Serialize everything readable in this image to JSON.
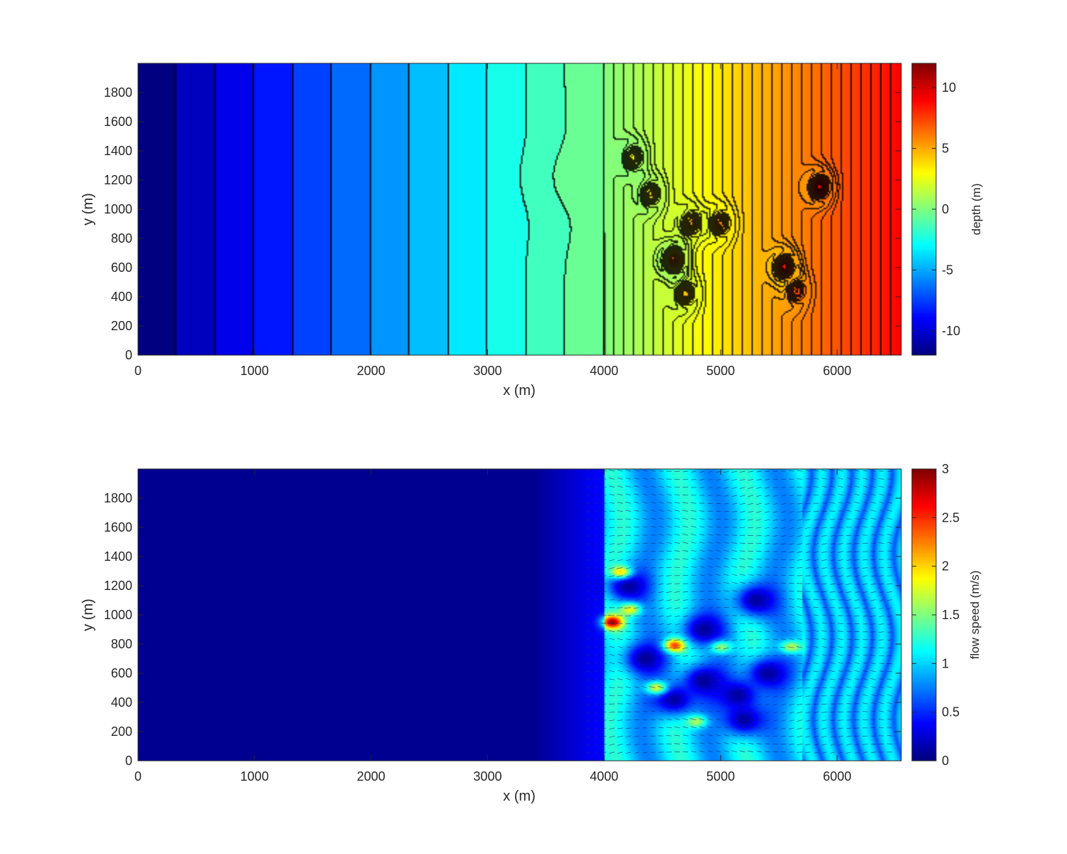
{
  "chart_data": [
    {
      "type": "heatmap",
      "description_visible": "filled contour map of bed depth",
      "xlabel": "x (m)",
      "ylabel": "y (m)",
      "xlim": [
        0,
        6550
      ],
      "ylim": [
        0,
        2000
      ],
      "xticks": [
        0,
        1000,
        2000,
        3000,
        4000,
        5000,
        6000
      ],
      "yticks": [
        0,
        200,
        400,
        600,
        800,
        1000,
        1200,
        1400,
        1600,
        1800
      ],
      "colorbar": {
        "label": "depth (m)",
        "range": [
          -12,
          12
        ],
        "ticks": [
          -10,
          -5,
          0,
          5,
          10
        ],
        "colormap": "jet"
      },
      "offshore_depth_bands": {
        "x_edges": [
          0,
          333,
          667,
          1000,
          1333,
          1667,
          2000,
          2333,
          2667,
          3000,
          3333,
          3667,
          4000
        ],
        "depths": [
          -12,
          -10.5,
          -9.5,
          -8.5,
          -7.5,
          -6.5,
          -5.5,
          -4.5,
          -3.5,
          -2.5,
          -1.5,
          -0.5
        ]
      },
      "shoreline_zero_contour_x": 4000,
      "onshore_depth_range": [
        0,
        9
      ],
      "features": [
        {
          "x": 4250,
          "y": 1350,
          "amplitude": 2
        },
        {
          "x": 4400,
          "y": 1100,
          "amplitude": 2
        },
        {
          "x": 4600,
          "y": 650,
          "amplitude": 4
        },
        {
          "x": 4700,
          "y": 420,
          "amplitude": 2
        },
        {
          "x": 4750,
          "y": 900,
          "amplitude": 2
        },
        {
          "x": 5000,
          "y": 900,
          "amplitude": 2
        },
        {
          "x": 5550,
          "y": 600,
          "amplitude": 3
        },
        {
          "x": 5850,
          "y": 1150,
          "amplitude": 3
        },
        {
          "x": 5650,
          "y": 440,
          "amplitude": 1.5
        }
      ]
    },
    {
      "type": "heatmap",
      "description_visible": "flow speed magnitude with velocity vectors",
      "xlabel": "x (m)",
      "ylabel": "y (m)",
      "xlim": [
        0,
        6550
      ],
      "ylim": [
        0,
        2000
      ],
      "xticks": [
        0,
        1000,
        2000,
        3000,
        4000,
        5000,
        6000
      ],
      "yticks": [
        0,
        200,
        400,
        600,
        800,
        1000,
        1200,
        1400,
        1600,
        1800
      ],
      "colorbar": {
        "label": "flow speed (m/s)",
        "range": [
          0,
          3
        ],
        "ticks": [
          0,
          0.5,
          1,
          1.5,
          2,
          2.5,
          3
        ],
        "colormap": "jet"
      },
      "offshore_speed": 0.05,
      "surf_zone_speed": 1.0,
      "surf_zone_start_x": 4000,
      "high_speed_spots": [
        {
          "x": 4070,
          "y": 950,
          "speed": 2.7
        },
        {
          "x": 4230,
          "y": 1040,
          "speed": 2.0
        },
        {
          "x": 4150,
          "y": 1290,
          "speed": 2.3
        },
        {
          "x": 4600,
          "y": 790,
          "speed": 2.5
        },
        {
          "x": 4450,
          "y": 500,
          "speed": 2.2
        },
        {
          "x": 4800,
          "y": 270,
          "speed": 1.8
        },
        {
          "x": 5600,
          "y": 780,
          "speed": 1.9
        },
        {
          "x": 5000,
          "y": 780,
          "speed": 1.9
        }
      ],
      "low_speed_pockets": [
        {
          "x": 4200,
          "y": 1200
        },
        {
          "x": 4350,
          "y": 700
        },
        {
          "x": 4850,
          "y": 900
        },
        {
          "x": 5300,
          "y": 1100
        },
        {
          "x": 4850,
          "y": 550
        },
        {
          "x": 5400,
          "y": 600
        },
        {
          "x": 4600,
          "y": 420
        },
        {
          "x": 5150,
          "y": 450
        },
        {
          "x": 5200,
          "y": 280
        }
      ]
    }
  ]
}
